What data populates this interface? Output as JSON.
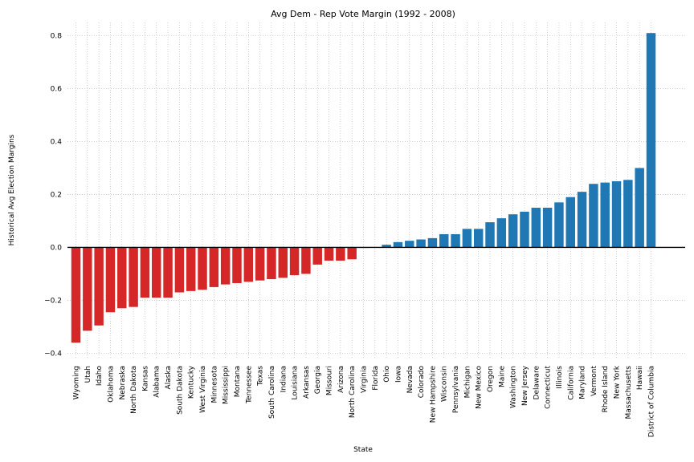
{
  "chart_data": {
    "type": "bar",
    "title": "Avg Dem - Rep Vote Margin (1992 - 2008)",
    "xlabel": "State",
    "ylabel": "Historical Avg Election Margins",
    "ylim": [
      -0.42,
      0.85
    ],
    "yticks": [
      -0.4,
      -0.2,
      0.0,
      0.2,
      0.4,
      0.6,
      0.8
    ],
    "ytick_labels": [
      "−0.4",
      "−0.2",
      "0.0",
      "0.2",
      "0.4",
      "0.6",
      "0.8"
    ],
    "grid": true,
    "colors": {
      "negative": "#d62728",
      "positive": "#1f77b4",
      "zero_line": "#000000"
    },
    "categories": [
      "Wyoming",
      "Utah",
      "Idaho",
      "Oklahoma",
      "Nebraska",
      "North Dakota",
      "Kansas",
      "Alabama",
      "Alaska",
      "South Dakota",
      "Kentucky",
      "West Virginia",
      "Minnesota",
      "Mississippi",
      "Montana",
      "Tennessee",
      "Texas",
      "South Carolina",
      "Indiana",
      "Louisiana",
      "Arkansas",
      "Georgia",
      "Missouri",
      "Arizona",
      "North Carolina",
      "Virginia",
      "Florida",
      "Ohio",
      "Iowa",
      "Nevada",
      "Colorado",
      "New Hampshire",
      "Wisconsin",
      "Pennsylvania",
      "Michigan",
      "New Mexico",
      "Oregon",
      "Maine",
      "Washington",
      "New Jersey",
      "Delaware",
      "Connecticut",
      "Illinois",
      "California",
      "Maryland",
      "Vermont",
      "Rhode Island",
      "New York",
      "Massachusetts",
      "Hawaii",
      "District of Columbia"
    ],
    "values": [
      -0.36,
      -0.315,
      -0.295,
      -0.245,
      -0.23,
      -0.225,
      -0.19,
      -0.19,
      -0.19,
      -0.17,
      -0.165,
      -0.16,
      -0.15,
      -0.14,
      -0.135,
      -0.13,
      -0.125,
      -0.12,
      -0.115,
      -0.105,
      -0.1,
      -0.065,
      -0.05,
      -0.05,
      -0.045,
      -0.002,
      0.0,
      0.01,
      0.02,
      0.025,
      0.03,
      0.035,
      0.05,
      0.05,
      0.07,
      0.07,
      0.095,
      0.11,
      0.125,
      0.135,
      0.15,
      0.15,
      0.17,
      0.19,
      0.21,
      0.24,
      0.245,
      0.25,
      0.255,
      0.3,
      0.81
    ]
  }
}
